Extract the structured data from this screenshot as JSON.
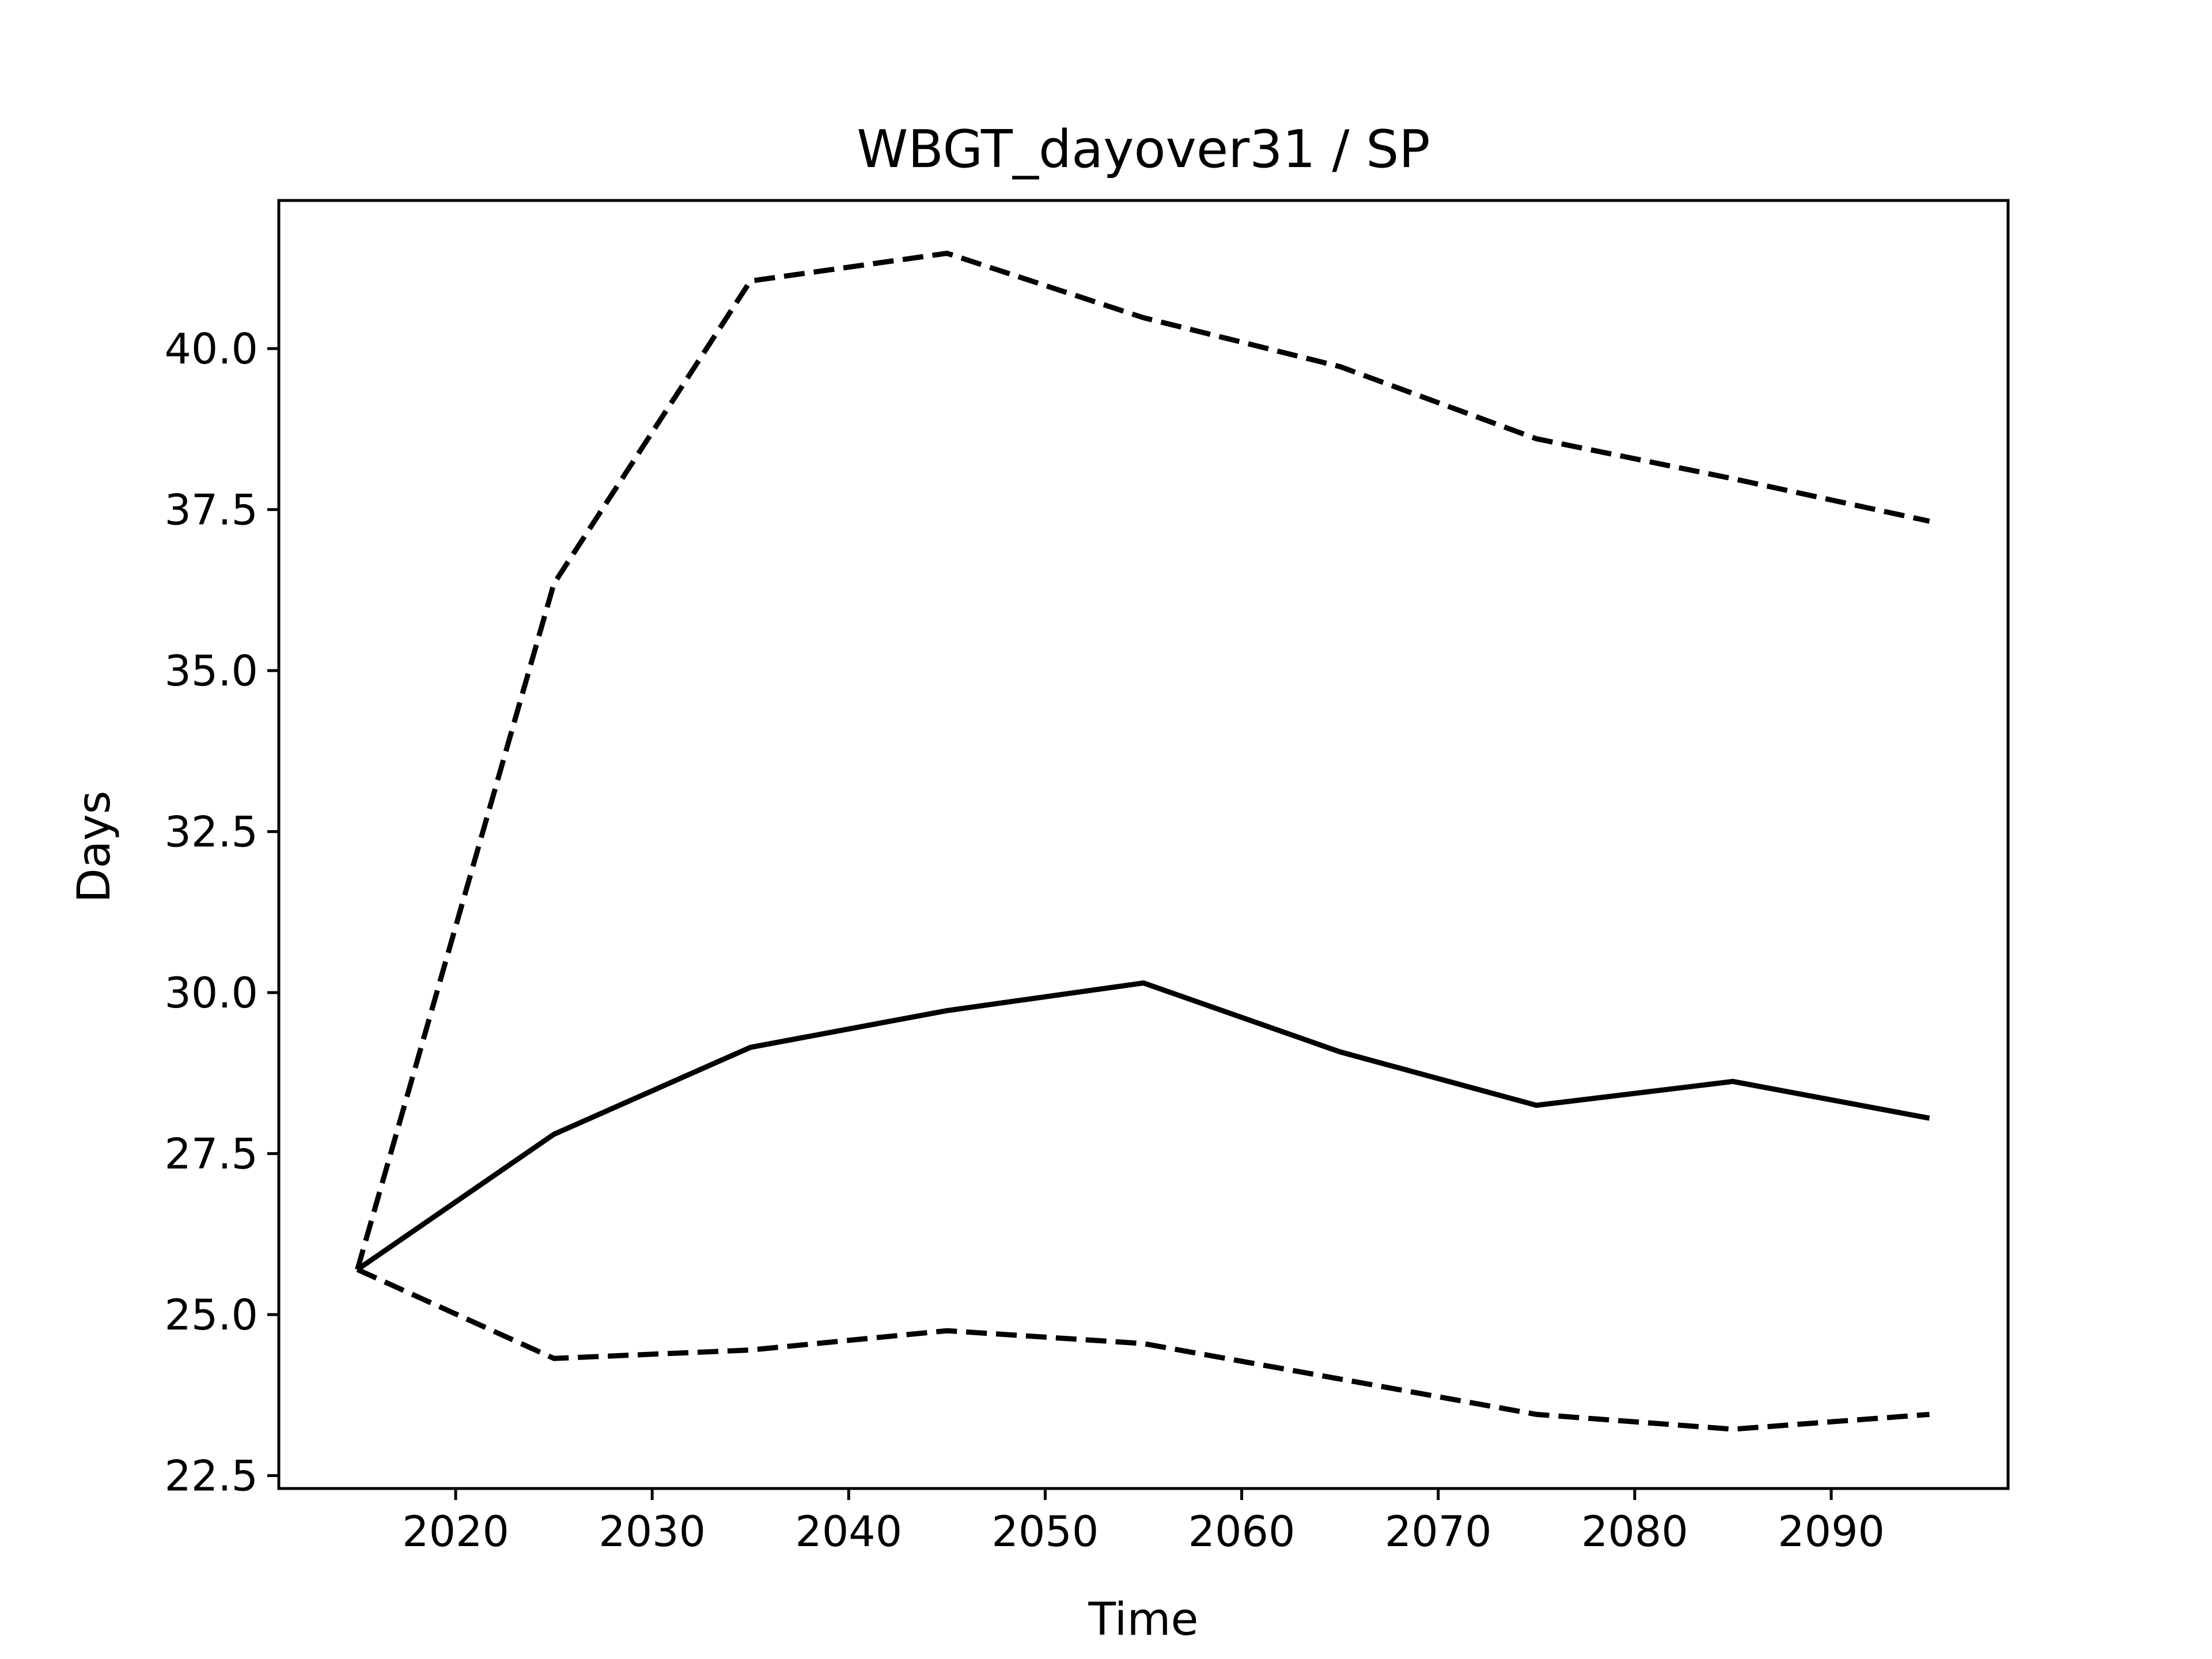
{
  "chart_data": {
    "type": "line",
    "title": "WBGT_dayover31 / SP",
    "xlabel": "Time",
    "ylabel": "Days",
    "xlim": [
      2011,
      2099
    ],
    "ylim": [
      22.3,
      42.3
    ],
    "grid": false,
    "x": [
      2015,
      2025,
      2035,
      2045,
      2055,
      2065,
      2075,
      2085,
      2095
    ],
    "xticks": [
      2020,
      2030,
      2040,
      2050,
      2060,
      2070,
      2080,
      2090
    ],
    "xtick_labels": [
      "2020",
      "2030",
      "2040",
      "2050",
      "2060",
      "2070",
      "2080",
      "2090"
    ],
    "yticks": [
      22.5,
      25.0,
      27.5,
      30.0,
      32.5,
      35.0,
      37.5,
      40.0
    ],
    "ytick_labels": [
      "22.5",
      "25.0",
      "27.5",
      "30.0",
      "32.5",
      "35.0",
      "37.5",
      "40.0"
    ],
    "series": [
      {
        "style": "solid",
        "color": "#000000",
        "values": [
          25.7,
          27.8,
          29.15,
          29.72,
          30.15,
          29.08,
          28.25,
          28.62,
          28.05
        ]
      },
      {
        "style": "dashed",
        "color": "#000000",
        "values": [
          25.7,
          36.35,
          41.05,
          41.48,
          40.48,
          39.72,
          38.6,
          37.98,
          37.32
        ]
      },
      {
        "style": "dashed",
        "color": "#000000",
        "values": [
          25.7,
          24.32,
          24.45,
          24.75,
          24.55,
          24.0,
          23.45,
          23.22,
          23.45
        ]
      }
    ]
  }
}
